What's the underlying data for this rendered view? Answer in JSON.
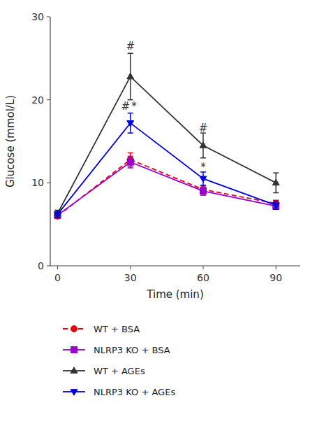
{
  "chart_data": {
    "type": "line",
    "x": [
      0,
      30,
      60,
      90
    ],
    "xlabel": "Time (min)",
    "ylabel": "Glucose (mmol/L)",
    "xlim": [
      -3,
      100
    ],
    "ylim": [
      0,
      30
    ],
    "xticks": [
      0,
      30,
      60,
      90
    ],
    "yticks": [
      0,
      10,
      20,
      30
    ],
    "grid": false,
    "legend": "bottom",
    "series": [
      {
        "name": "WT + BSA",
        "color": "#e8000a",
        "marker": "circle",
        "line_style": "dashed",
        "values": [
          6.0,
          12.8,
          9.2,
          7.5
        ],
        "errors": [
          0.3,
          0.8,
          0.5,
          0.4
        ]
      },
      {
        "name": "NLRP3 KO + BSA",
        "color": "#9900cc",
        "marker": "square",
        "line_style": "solid",
        "values": [
          6.1,
          12.5,
          9.0,
          7.2
        ],
        "errors": [
          0.3,
          0.7,
          0.5,
          0.4
        ]
      },
      {
        "name": "WT + AGEs",
        "color": "#333333",
        "marker": "triangle-up",
        "line_style": "solid",
        "values": [
          6.3,
          22.8,
          14.5,
          10.0
        ],
        "errors": [
          0.4,
          2.8,
          1.5,
          1.2
        ]
      },
      {
        "name": "NLRP3 KO + AGEs",
        "color": "#0000dd",
        "marker": "triangle-down",
        "line_style": "solid",
        "values": [
          6.2,
          17.2,
          10.5,
          7.3
        ],
        "errors": [
          0.4,
          1.2,
          0.8,
          0.5
        ]
      }
    ],
    "annotations": [
      {
        "text": "#",
        "x": 30,
        "y": 26.0
      },
      {
        "text": "#",
        "x": 28.0,
        "y": 18.8
      },
      {
        "text": "*",
        "x": 31.5,
        "y": 18.8
      },
      {
        "text": "#",
        "x": 60,
        "y": 16.2
      },
      {
        "text": "*",
        "x": 60,
        "y": 11.5
      }
    ]
  }
}
